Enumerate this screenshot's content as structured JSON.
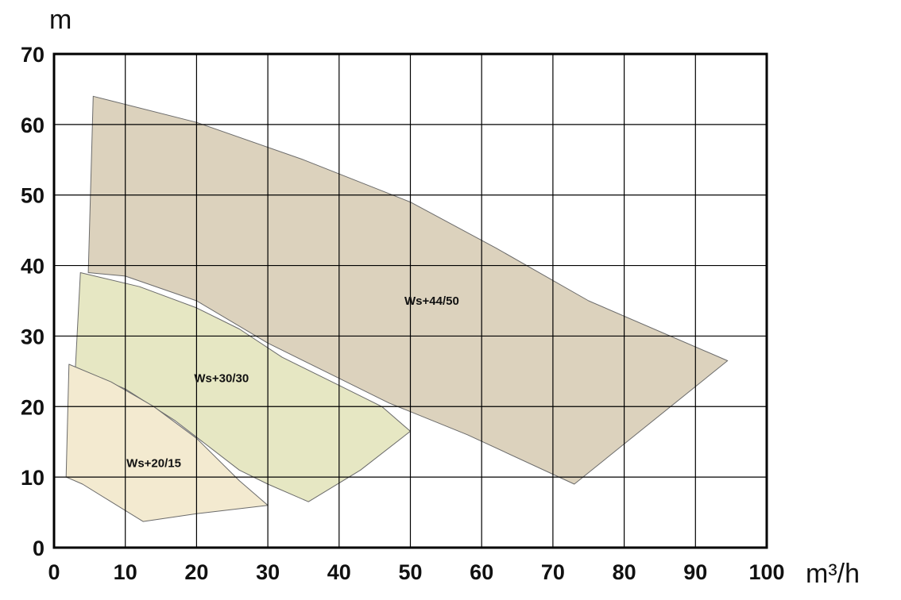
{
  "chart_data": {
    "type": "area",
    "title": "",
    "xlabel": "m³/h",
    "ylabel": "m",
    "xlim": [
      0,
      100
    ],
    "ylim": [
      0,
      70
    ],
    "x_ticks": [
      0,
      10,
      20,
      30,
      40,
      50,
      60,
      70,
      80,
      90,
      100
    ],
    "y_ticks": [
      0,
      10,
      20,
      30,
      40,
      50,
      60,
      70
    ],
    "grid": true,
    "series": [
      {
        "name": "Ws+44/50",
        "color": "#dcd2bd",
        "label_at": [
          53,
          35
        ],
        "outline": [
          [
            5.5,
            64
          ],
          [
            20,
            60.3
          ],
          [
            35,
            55
          ],
          [
            50,
            49
          ],
          [
            62,
            42.5
          ],
          [
            75,
            35
          ],
          [
            94.5,
            26.5
          ],
          [
            73,
            9
          ],
          [
            58,
            16
          ],
          [
            47,
            20.5
          ],
          [
            40,
            24
          ],
          [
            30,
            29
          ],
          [
            20,
            35
          ],
          [
            10,
            38.5
          ],
          [
            4.8,
            39
          ],
          [
            5.5,
            64
          ]
        ]
      },
      {
        "name": "Ws+30/30",
        "color": "#e6e7c3",
        "label_at": [
          23.5,
          24
        ],
        "outline": [
          [
            3.7,
            39
          ],
          [
            12,
            37
          ],
          [
            20,
            34
          ],
          [
            26,
            31
          ],
          [
            32,
            27
          ],
          [
            40,
            23
          ],
          [
            46,
            20
          ],
          [
            50,
            16.5
          ],
          [
            43,
            11
          ],
          [
            35.7,
            6.5
          ],
          [
            30,
            9
          ],
          [
            26,
            11
          ],
          [
            17,
            18
          ],
          [
            10,
            22.5
          ],
          [
            3,
            25.5
          ],
          [
            3.7,
            39
          ]
        ]
      },
      {
        "name": "Ws+20/15",
        "color": "#f3ead0",
        "label_at": [
          14,
          12
        ],
        "outline": [
          [
            2.1,
            26
          ],
          [
            8,
            23.5
          ],
          [
            14,
            20
          ],
          [
            20,
            15.5
          ],
          [
            26,
            9.5
          ],
          [
            30,
            6
          ],
          [
            20,
            4.8
          ],
          [
            12.5,
            3.7
          ],
          [
            8,
            6.5
          ],
          [
            4,
            9
          ],
          [
            1.7,
            10
          ],
          [
            2.1,
            26
          ]
        ]
      }
    ]
  }
}
